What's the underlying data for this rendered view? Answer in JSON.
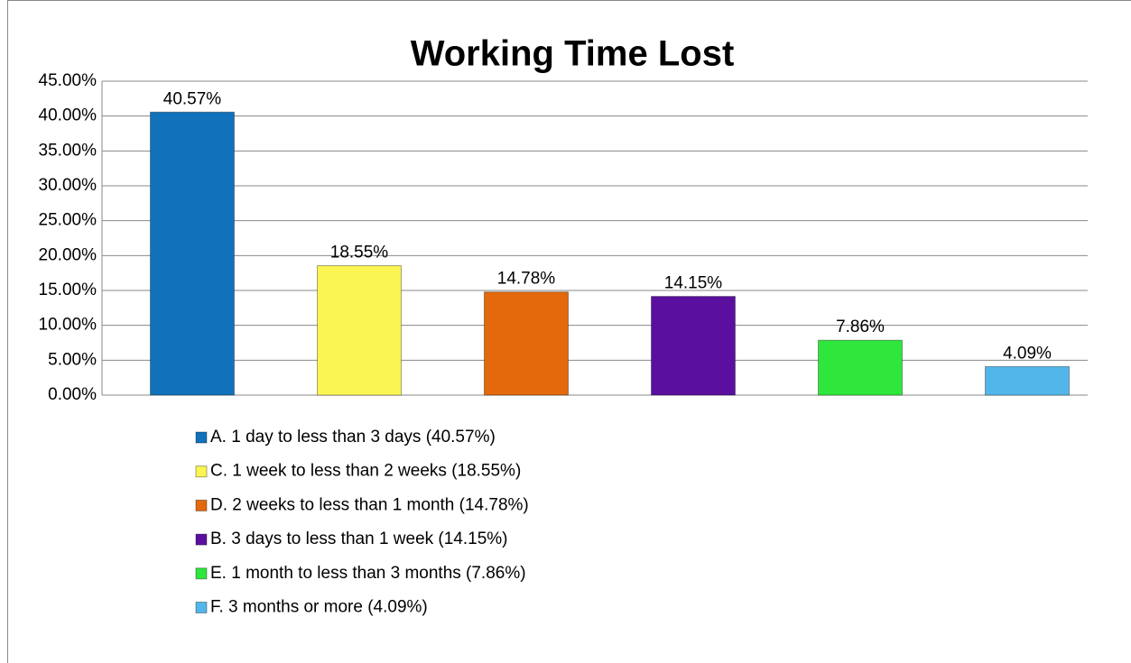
{
  "chart_data": {
    "type": "bar",
    "title": "Working Time Lost",
    "categories": [
      null
    ],
    "series": [
      {
        "name": "A. 1 day to less than 3 days (40.57%)",
        "color": "#1172bb",
        "values": [
          40.57
        ],
        "value_labels": [
          "40.57%"
        ]
      },
      {
        "name": "C. 1 week to less than 2 weeks (18.55%)",
        "color": "#fbf552",
        "values": [
          18.55
        ],
        "value_labels": [
          "18.55%"
        ]
      },
      {
        "name": "D. 2 weeks to less than 1 month (14.78%)",
        "color": "#e3690c",
        "values": [
          14.78
        ],
        "value_labels": [
          "14.78%"
        ]
      },
      {
        "name": "B. 3 days to less than 1 week (14.15%)",
        "color": "#5a0f9f",
        "values": [
          14.15
        ],
        "value_labels": [
          "14.15%"
        ]
      },
      {
        "name": "E. 1 month to less than 3 months (7.86%)",
        "color": "#2fe63c",
        "values": [
          7.86
        ],
        "value_labels": [
          "7.86%"
        ]
      },
      {
        "name": "F. 3 months or more (4.09%)",
        "color": "#52b6ea",
        "values": [
          4.09
        ],
        "value_labels": [
          "4.09%"
        ]
      }
    ],
    "ylim": [
      0,
      45
    ],
    "yticks": [
      {
        "value": 0,
        "label": "0.00%"
      },
      {
        "value": 5,
        "label": "5.00%"
      },
      {
        "value": 10,
        "label": "10.00%"
      },
      {
        "value": 15,
        "label": "15.00%"
      },
      {
        "value": 20,
        "label": "20.00%"
      },
      {
        "value": 25,
        "label": "25.00%"
      },
      {
        "value": 30,
        "label": "30.00%"
      },
      {
        "value": 35,
        "label": "35.00%"
      },
      {
        "value": 40,
        "label": "40.00%"
      },
      {
        "value": 45,
        "label": "45.00%"
      }
    ],
    "grid": true,
    "legend": "bottom"
  }
}
